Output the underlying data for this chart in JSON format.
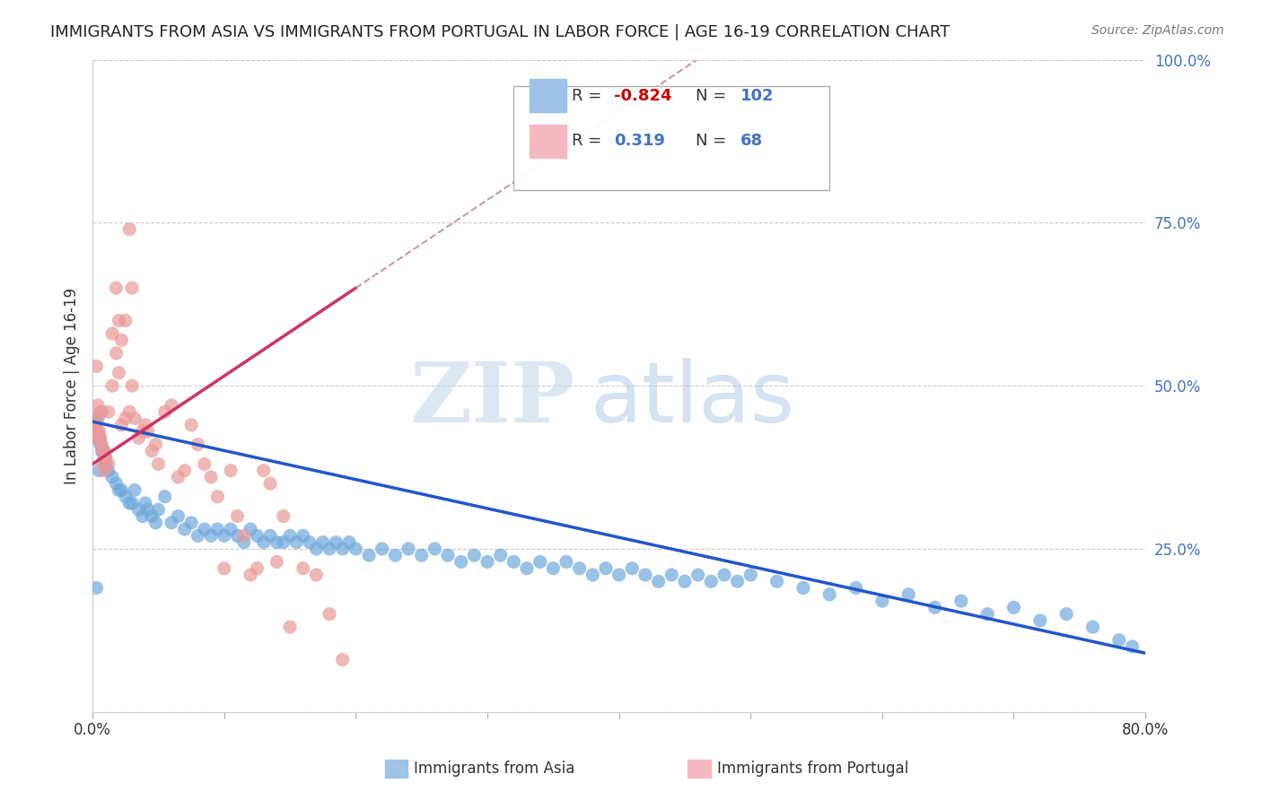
{
  "title": "IMMIGRANTS FROM ASIA VS IMMIGRANTS FROM PORTUGAL IN LABOR FORCE | AGE 16-19 CORRELATION CHART",
  "source": "Source: ZipAtlas.com",
  "ylabel": "In Labor Force | Age 16-19",
  "xlim": [
    0.0,
    0.8
  ],
  "ylim": [
    0.0,
    1.0
  ],
  "xticks": [
    0.0,
    0.1,
    0.2,
    0.3,
    0.4,
    0.5,
    0.6,
    0.7,
    0.8
  ],
  "xticklabels": [
    "0.0%",
    "",
    "",
    "",
    "",
    "",
    "",
    "",
    "80.0%"
  ],
  "yticks_right": [
    0.0,
    0.25,
    0.5,
    0.75,
    1.0
  ],
  "yticklabels_right": [
    "",
    "25.0%",
    "50.0%",
    "75.0%",
    "100.0%"
  ],
  "color_asia": "#6fa8dc",
  "color_portugal": "#ea9999",
  "color_asia_line": "#2255cc",
  "color_portugal_line": "#cc3366",
  "color_portugal_dashed": "#cc9999",
  "R_asia": -0.824,
  "N_asia": 102,
  "R_portugal": 0.319,
  "N_portugal": 68,
  "background_color": "#ffffff",
  "grid_color": "#cccccc",
  "asia_x": [
    0.002,
    0.003,
    0.004,
    0.005,
    0.006,
    0.007,
    0.008,
    0.009,
    0.01,
    0.012,
    0.015,
    0.018,
    0.02,
    0.022,
    0.025,
    0.028,
    0.03,
    0.032,
    0.035,
    0.038,
    0.04,
    0.042,
    0.045,
    0.048,
    0.05,
    0.055,
    0.06,
    0.065,
    0.07,
    0.075,
    0.08,
    0.085,
    0.09,
    0.095,
    0.1,
    0.105,
    0.11,
    0.115,
    0.12,
    0.125,
    0.13,
    0.135,
    0.14,
    0.145,
    0.15,
    0.155,
    0.16,
    0.165,
    0.17,
    0.175,
    0.18,
    0.185,
    0.19,
    0.195,
    0.2,
    0.21,
    0.22,
    0.23,
    0.24,
    0.25,
    0.26,
    0.27,
    0.28,
    0.29,
    0.3,
    0.31,
    0.32,
    0.33,
    0.34,
    0.35,
    0.36,
    0.37,
    0.38,
    0.39,
    0.4,
    0.41,
    0.42,
    0.43,
    0.44,
    0.45,
    0.46,
    0.47,
    0.48,
    0.49,
    0.5,
    0.52,
    0.54,
    0.56,
    0.58,
    0.6,
    0.62,
    0.64,
    0.66,
    0.68,
    0.7,
    0.72,
    0.74,
    0.76,
    0.78,
    0.79,
    0.003,
    0.004,
    0.005
  ],
  "asia_y": [
    0.44,
    0.43,
    0.42,
    0.42,
    0.41,
    0.4,
    0.4,
    0.39,
    0.38,
    0.37,
    0.36,
    0.35,
    0.34,
    0.34,
    0.33,
    0.32,
    0.32,
    0.34,
    0.31,
    0.3,
    0.32,
    0.31,
    0.3,
    0.29,
    0.31,
    0.33,
    0.29,
    0.3,
    0.28,
    0.29,
    0.27,
    0.28,
    0.27,
    0.28,
    0.27,
    0.28,
    0.27,
    0.26,
    0.28,
    0.27,
    0.26,
    0.27,
    0.26,
    0.26,
    0.27,
    0.26,
    0.27,
    0.26,
    0.25,
    0.26,
    0.25,
    0.26,
    0.25,
    0.26,
    0.25,
    0.24,
    0.25,
    0.24,
    0.25,
    0.24,
    0.25,
    0.24,
    0.23,
    0.24,
    0.23,
    0.24,
    0.23,
    0.22,
    0.23,
    0.22,
    0.23,
    0.22,
    0.21,
    0.22,
    0.21,
    0.22,
    0.21,
    0.2,
    0.21,
    0.2,
    0.21,
    0.2,
    0.21,
    0.2,
    0.21,
    0.2,
    0.19,
    0.18,
    0.19,
    0.17,
    0.18,
    0.16,
    0.17,
    0.15,
    0.16,
    0.14,
    0.15,
    0.13,
    0.11,
    0.1,
    0.19,
    0.45,
    0.37
  ],
  "portugal_x": [
    0.001,
    0.002,
    0.003,
    0.004,
    0.005,
    0.006,
    0.007,
    0.008,
    0.009,
    0.01,
    0.012,
    0.015,
    0.018,
    0.02,
    0.022,
    0.025,
    0.028,
    0.03,
    0.032,
    0.035,
    0.038,
    0.04,
    0.042,
    0.045,
    0.048,
    0.05,
    0.055,
    0.06,
    0.065,
    0.07,
    0.075,
    0.08,
    0.085,
    0.09,
    0.095,
    0.1,
    0.105,
    0.11,
    0.115,
    0.12,
    0.125,
    0.13,
    0.135,
    0.14,
    0.145,
    0.15,
    0.16,
    0.17,
    0.18,
    0.19,
    0.0015,
    0.002,
    0.003,
    0.004,
    0.005,
    0.006,
    0.007,
    0.008,
    0.009,
    0.01,
    0.012,
    0.015,
    0.018,
    0.02,
    0.022,
    0.025,
    0.028,
    0.03
  ],
  "portugal_y": [
    0.44,
    0.43,
    0.44,
    0.43,
    0.42,
    0.42,
    0.41,
    0.4,
    0.4,
    0.39,
    0.38,
    0.5,
    0.55,
    0.52,
    0.57,
    0.45,
    0.46,
    0.5,
    0.45,
    0.42,
    0.43,
    0.44,
    0.43,
    0.4,
    0.41,
    0.38,
    0.46,
    0.47,
    0.36,
    0.37,
    0.44,
    0.41,
    0.38,
    0.36,
    0.33,
    0.22,
    0.37,
    0.3,
    0.27,
    0.21,
    0.22,
    0.37,
    0.35,
    0.23,
    0.3,
    0.13,
    0.22,
    0.21,
    0.15,
    0.08,
    0.45,
    0.42,
    0.53,
    0.47,
    0.43,
    0.46,
    0.46,
    0.38,
    0.37,
    0.39,
    0.46,
    0.58,
    0.65,
    0.6,
    0.44,
    0.6,
    0.74,
    0.65
  ]
}
